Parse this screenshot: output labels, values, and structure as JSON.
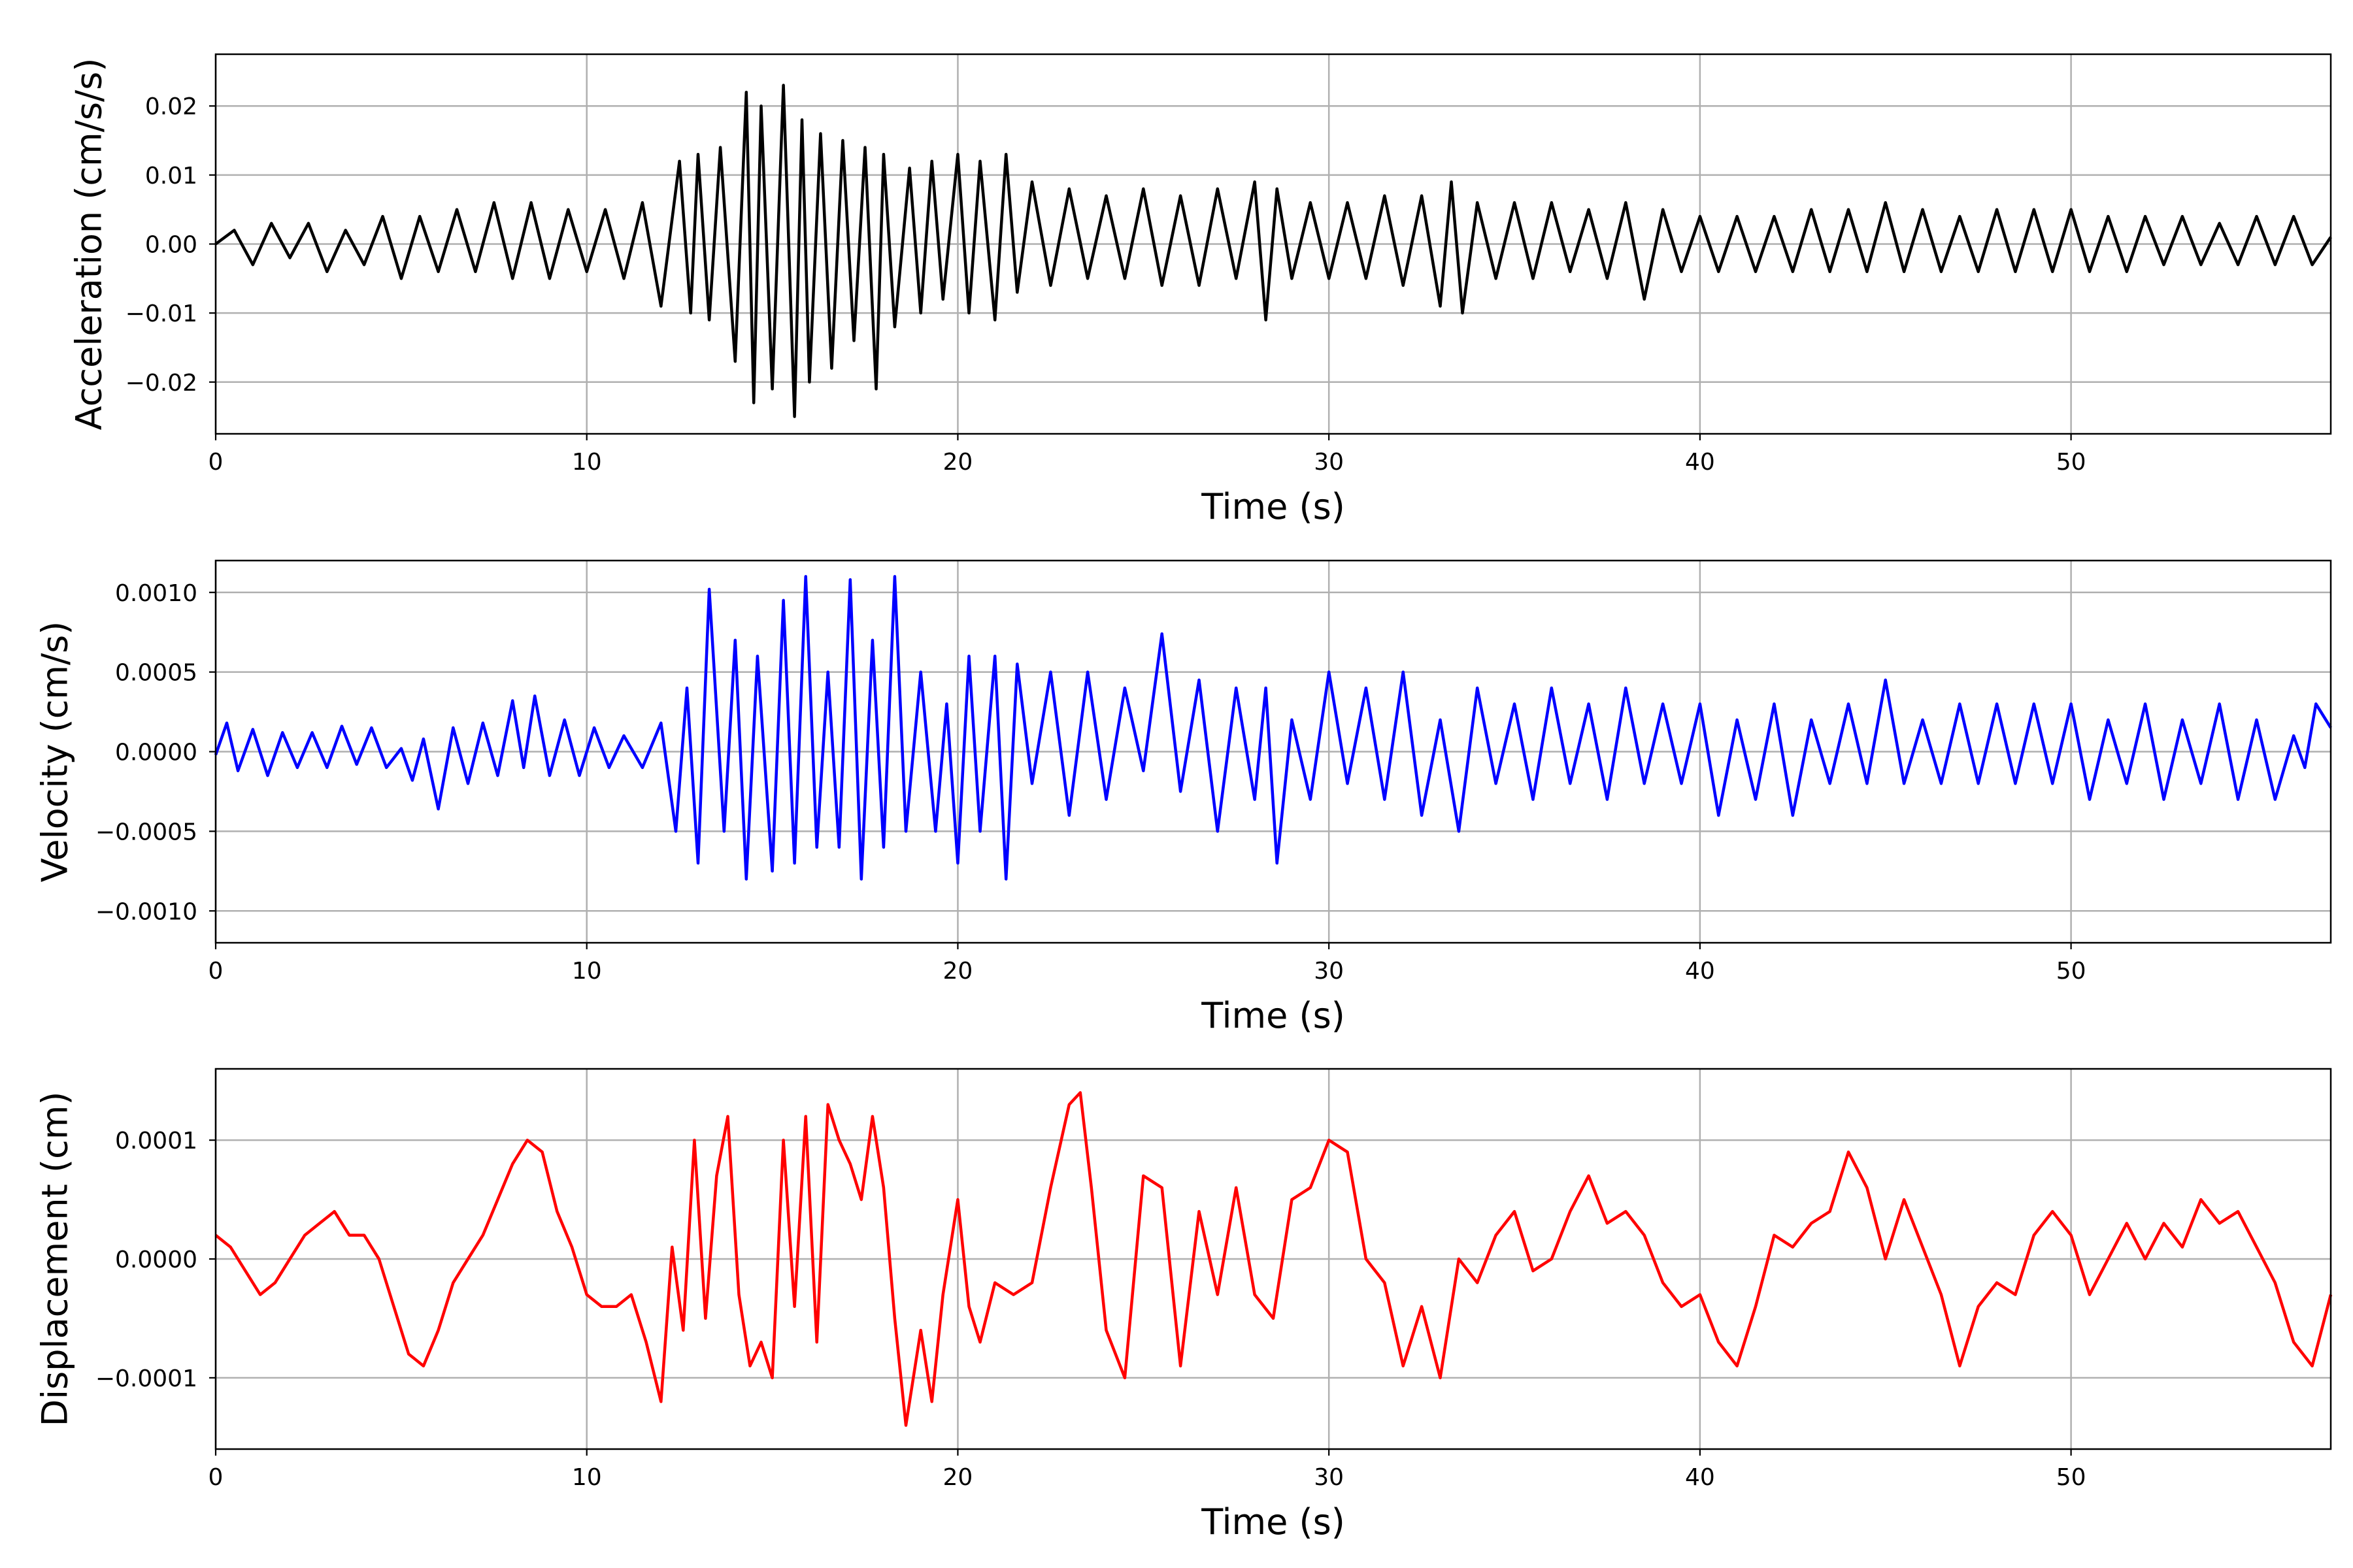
{
  "chart_data": [
    {
      "type": "line",
      "title": "",
      "xlabel": "Time (s)",
      "ylabel": "Acceleration (cm/s/s)",
      "xlim": [
        0,
        57
      ],
      "ylim": [
        -0.0275,
        0.0275
      ],
      "x_ticks": [
        0,
        10,
        20,
        30,
        40,
        50
      ],
      "x_tick_labels": [
        "0",
        "10",
        "20",
        "30",
        "40",
        "50"
      ],
      "y_ticks": [
        0.02,
        0.01,
        0.0,
        -0.01,
        -0.02
      ],
      "y_tick_labels": [
        "0.02",
        "0.01",
        "0.00",
        "−0.01",
        "−0.02"
      ],
      "grid": true,
      "color": "#000000",
      "series": [
        {
          "x": [
            0,
            0.5,
            1,
            1.5,
            2,
            2.5,
            3,
            3.5,
            4,
            4.5,
            5,
            5.5,
            6,
            6.5,
            7,
            7.5,
            8,
            8.5,
            9,
            9.5,
            10,
            10.5,
            11,
            11.5,
            12,
            12.5,
            12.8,
            13,
            13.3,
            13.6,
            14,
            14.3,
            14.5,
            14.7,
            15,
            15.3,
            15.6,
            15.8,
            16,
            16.3,
            16.6,
            16.9,
            17.2,
            17.5,
            17.8,
            18,
            18.3,
            18.7,
            19,
            19.3,
            19.6,
            20,
            20.3,
            20.6,
            21,
            21.3,
            21.6,
            22,
            22.5,
            23,
            23.5,
            24,
            24.5,
            25,
            25.5,
            26,
            26.5,
            27,
            27.5,
            28,
            28.3,
            28.6,
            29,
            29.5,
            30,
            30.5,
            31,
            31.5,
            32,
            32.5,
            33,
            33.3,
            33.6,
            34,
            34.5,
            35,
            35.5,
            36,
            36.5,
            37,
            37.5,
            38,
            38.5,
            39,
            39.5,
            40,
            40.5,
            41,
            41.5,
            42,
            42.5,
            43,
            43.5,
            44,
            44.5,
            45,
            45.5,
            46,
            46.5,
            47,
            47.5,
            48,
            48.5,
            49,
            49.5,
            50,
            50.5,
            51,
            51.5,
            52,
            52.5,
            53,
            53.5,
            54,
            54.5,
            55,
            55.5,
            56,
            56.5,
            57
          ],
          "y": [
            0.0,
            0.002,
            -0.003,
            0.003,
            -0.002,
            0.003,
            -0.004,
            0.002,
            -0.003,
            0.004,
            -0.005,
            0.004,
            -0.004,
            0.005,
            -0.004,
            0.006,
            -0.005,
            0.006,
            -0.005,
            0.005,
            -0.004,
            0.005,
            -0.005,
            0.006,
            -0.009,
            0.012,
            -0.01,
            0.013,
            -0.011,
            0.014,
            -0.017,
            0.022,
            -0.023,
            0.02,
            -0.021,
            0.023,
            -0.025,
            0.018,
            -0.02,
            0.016,
            -0.018,
            0.015,
            -0.014,
            0.014,
            -0.021,
            0.013,
            -0.012,
            0.011,
            -0.01,
            0.012,
            -0.008,
            0.013,
            -0.01,
            0.012,
            -0.011,
            0.013,
            -0.007,
            0.009,
            -0.006,
            0.008,
            -0.005,
            0.007,
            -0.005,
            0.008,
            -0.006,
            0.007,
            -0.006,
            0.008,
            -0.005,
            0.009,
            -0.011,
            0.008,
            -0.005,
            0.006,
            -0.005,
            0.006,
            -0.005,
            0.007,
            -0.006,
            0.007,
            -0.009,
            0.009,
            -0.01,
            0.006,
            -0.005,
            0.006,
            -0.005,
            0.006,
            -0.004,
            0.005,
            -0.005,
            0.006,
            -0.008,
            0.005,
            -0.004,
            0.004,
            -0.004,
            0.004,
            -0.004,
            0.004,
            -0.004,
            0.005,
            -0.004,
            0.005,
            -0.004,
            0.006,
            -0.004,
            0.005,
            -0.004,
            0.004,
            -0.004,
            0.005,
            -0.004,
            0.005,
            -0.004,
            0.005,
            -0.004,
            0.004,
            -0.004,
            0.004,
            -0.003,
            0.004,
            -0.003,
            0.003,
            -0.003,
            0.004,
            -0.003,
            0.004,
            -0.003,
            0.001
          ]
        }
      ]
    },
    {
      "type": "line",
      "title": "",
      "xlabel": "Time (s)",
      "ylabel": "Velocity (cm/s)",
      "xlim": [
        0,
        57
      ],
      "ylim": [
        -0.0012,
        0.0012
      ],
      "x_ticks": [
        0,
        10,
        20,
        30,
        40,
        50
      ],
      "x_tick_labels": [
        "0",
        "10",
        "20",
        "30",
        "40",
        "50"
      ],
      "y_ticks": [
        0.001,
        0.0005,
        0.0,
        -0.0005,
        -0.001
      ],
      "y_tick_labels": [
        "0.0010",
        "0.0005",
        "0.0000",
        "−0.0005",
        "−0.0010"
      ],
      "grid": true,
      "color": "#0000ff",
      "series": [
        {
          "x": [
            0,
            0.3,
            0.6,
            1,
            1.4,
            1.8,
            2.2,
            2.6,
            3,
            3.4,
            3.8,
            4.2,
            4.6,
            5,
            5.3,
            5.6,
            6,
            6.4,
            6.8,
            7.2,
            7.6,
            8,
            8.3,
            8.6,
            9,
            9.4,
            9.8,
            10.2,
            10.6,
            11,
            11.5,
            12,
            12.4,
            12.7,
            13,
            13.3,
            13.7,
            14,
            14.3,
            14.6,
            15,
            15.3,
            15.6,
            15.9,
            16.2,
            16.5,
            16.8,
            17.1,
            17.4,
            17.7,
            18,
            18.3,
            18.6,
            19,
            19.4,
            19.7,
            20,
            20.3,
            20.6,
            21,
            21.3,
            21.6,
            22,
            22.5,
            23,
            23.5,
            24,
            24.5,
            25,
            25.5,
            26,
            26.5,
            27,
            27.5,
            28,
            28.3,
            28.6,
            29,
            29.5,
            30,
            30.5,
            31,
            31.5,
            32,
            32.5,
            33,
            33.5,
            34,
            34.5,
            35,
            35.5,
            36,
            36.5,
            37,
            37.5,
            38,
            38.5,
            39,
            39.5,
            40,
            40.5,
            41,
            41.5,
            42,
            42.5,
            43,
            43.5,
            44,
            44.5,
            45,
            45.5,
            46,
            46.5,
            47,
            47.5,
            48,
            48.5,
            49,
            49.5,
            50,
            50.5,
            51,
            51.5,
            52,
            52.5,
            53,
            53.5,
            54,
            54.5,
            55,
            55.5,
            56,
            56.3,
            56.6,
            57
          ],
          "y": [
            -2e-05,
            0.00018,
            -0.00012,
            0.00014,
            -0.00015,
            0.00012,
            -0.0001,
            0.00012,
            -0.0001,
            0.00016,
            -8e-05,
            0.00015,
            -0.0001,
            2e-05,
            -0.00018,
            8e-05,
            -0.00036,
            0.00015,
            -0.0002,
            0.00018,
            -0.00015,
            0.00032,
            -0.0001,
            0.00035,
            -0.00015,
            0.0002,
            -0.00015,
            0.00015,
            -0.0001,
            0.0001,
            -0.0001,
            0.00018,
            -0.0005,
            0.0004,
            -0.0007,
            0.00102,
            -0.0005,
            0.0007,
            -0.0008,
            0.0006,
            -0.00075,
            0.00095,
            -0.0007,
            0.0011,
            -0.0006,
            0.0005,
            -0.0006,
            0.00108,
            -0.0008,
            0.0007,
            -0.0006,
            0.0011,
            -0.0005,
            0.0005,
            -0.0005,
            0.0003,
            -0.0007,
            0.0006,
            -0.0005,
            0.0006,
            -0.0008,
            0.00055,
            -0.0002,
            0.0005,
            -0.0004,
            0.0005,
            -0.0003,
            0.0004,
            -0.00012,
            0.00074,
            -0.00025,
            0.00045,
            -0.0005,
            0.0004,
            -0.0003,
            0.0004,
            -0.0007,
            0.0002,
            -0.0003,
            0.0005,
            -0.0002,
            0.0004,
            -0.0003,
            0.0005,
            -0.0004,
            0.0002,
            -0.0005,
            0.0004,
            -0.0002,
            0.0003,
            -0.0003,
            0.0004,
            -0.0002,
            0.0003,
            -0.0003,
            0.0004,
            -0.0002,
            0.0003,
            -0.0002,
            0.0003,
            -0.0004,
            0.0002,
            -0.0003,
            0.0003,
            -0.0004,
            0.0002,
            -0.0002,
            0.0003,
            -0.0002,
            0.00045,
            -0.0002,
            0.0002,
            -0.0002,
            0.0003,
            -0.0002,
            0.0003,
            -0.0002,
            0.0003,
            -0.0002,
            0.0003,
            -0.0003,
            0.0002,
            -0.0002,
            0.0003,
            -0.0003,
            0.0002,
            -0.0002,
            0.0003,
            -0.0003,
            0.0002,
            -0.0003,
            0.0001,
            -0.0001,
            0.0003,
            0.00015
          ]
        }
      ]
    },
    {
      "type": "line",
      "title": "",
      "xlabel": "Time (s)",
      "ylabel": "Displacement (cm)",
      "xlim": [
        0,
        57
      ],
      "ylim": [
        -0.00016,
        0.00016
      ],
      "x_ticks": [
        0,
        10,
        20,
        30,
        40,
        50
      ],
      "x_tick_labels": [
        "0",
        "10",
        "20",
        "30",
        "40",
        "50"
      ],
      "y_ticks": [
        0.0001,
        0.0,
        -0.0001
      ],
      "y_tick_labels": [
        "0.0001",
        "0.0000",
        "−0.0001"
      ],
      "grid": true,
      "color": "#ff0000",
      "series": [
        {
          "x": [
            0,
            0.4,
            0.8,
            1.2,
            1.6,
            2,
            2.4,
            2.8,
            3.2,
            3.6,
            4,
            4.4,
            4.8,
            5.2,
            5.6,
            6,
            6.4,
            6.8,
            7.2,
            7.6,
            8,
            8.4,
            8.8,
            9.2,
            9.6,
            10,
            10.4,
            10.8,
            11.2,
            11.6,
            12,
            12.3,
            12.6,
            12.9,
            13.2,
            13.5,
            13.8,
            14.1,
            14.4,
            14.7,
            15,
            15.3,
            15.6,
            15.9,
            16.2,
            16.5,
            16.8,
            17.1,
            17.4,
            17.7,
            18,
            18.3,
            18.6,
            19,
            19.3,
            19.6,
            20,
            20.3,
            20.6,
            21,
            21.5,
            22,
            22.5,
            23,
            23.3,
            23.6,
            24,
            24.5,
            25,
            25.5,
            26,
            26.5,
            27,
            27.5,
            28,
            28.5,
            29,
            29.5,
            30,
            30.5,
            31,
            31.5,
            32,
            32.5,
            33,
            33.5,
            34,
            34.5,
            35,
            35.5,
            36,
            36.5,
            37,
            37.5,
            38,
            38.5,
            39,
            39.5,
            40,
            40.5,
            41,
            41.5,
            42,
            42.5,
            43,
            43.5,
            44,
            44.5,
            45,
            45.5,
            46,
            46.5,
            47,
            47.5,
            48,
            48.5,
            49,
            49.5,
            50,
            50.5,
            51,
            51.5,
            52,
            52.5,
            53,
            53.5,
            54,
            54.5,
            55,
            55.5,
            56,
            56.5,
            57
          ],
          "y": [
            2e-05,
            1e-05,
            -1e-05,
            -3e-05,
            -2e-05,
            0.0,
            2e-05,
            3e-05,
            4e-05,
            2e-05,
            2e-05,
            0.0,
            -4e-05,
            -8e-05,
            -9e-05,
            -6e-05,
            -2e-05,
            0.0,
            2e-05,
            5e-05,
            8e-05,
            0.0001,
            9e-05,
            4e-05,
            1e-05,
            -3e-05,
            -4e-05,
            -4e-05,
            -3e-05,
            -7e-05,
            -0.00012,
            1e-05,
            -6e-05,
            0.0001,
            -5e-05,
            7e-05,
            0.00012,
            -3e-05,
            -9e-05,
            -7e-05,
            -0.0001,
            0.0001,
            -4e-05,
            0.00012,
            -7e-05,
            0.00013,
            0.0001,
            8e-05,
            5e-05,
            0.00012,
            6e-05,
            -5e-05,
            -0.00014,
            -6e-05,
            -0.00012,
            -3e-05,
            5e-05,
            -4e-05,
            -7e-05,
            -2e-05,
            -3e-05,
            -2e-05,
            6e-05,
            0.00013,
            0.00014,
            6e-05,
            -6e-05,
            -0.0001,
            7e-05,
            6e-05,
            -9e-05,
            4e-05,
            -3e-05,
            6e-05,
            -3e-05,
            -5e-05,
            5e-05,
            6e-05,
            0.0001,
            9e-05,
            0.0,
            -2e-05,
            -9e-05,
            -4e-05,
            -0.0001,
            0.0,
            -2e-05,
            2e-05,
            4e-05,
            -1e-05,
            0.0,
            4e-05,
            7e-05,
            3e-05,
            4e-05,
            2e-05,
            -2e-05,
            -4e-05,
            -3e-05,
            -7e-05,
            -9e-05,
            -4e-05,
            2e-05,
            1e-05,
            3e-05,
            4e-05,
            9e-05,
            6e-05,
            0.0,
            5e-05,
            1e-05,
            -3e-05,
            -9e-05,
            -4e-05,
            -2e-05,
            -3e-05,
            2e-05,
            4e-05,
            2e-05,
            -3e-05,
            0.0,
            3e-05,
            0.0,
            3e-05,
            1e-05,
            5e-05,
            3e-05,
            4e-05,
            1e-05,
            -2e-05,
            -7e-05,
            -9e-05,
            -3e-05
          ]
        }
      ]
    }
  ]
}
